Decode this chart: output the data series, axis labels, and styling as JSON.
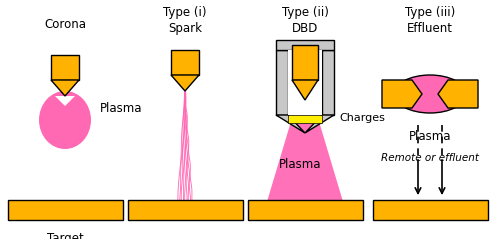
{
  "bg_color": "#ffffff",
  "gold": "#FFB300",
  "gold_edge": "#000000",
  "pink": "#FF69B4",
  "gray": "#C8C8C8",
  "white": "#ffffff",
  "yellow": "#FFEE00",
  "figsize": [
    5.0,
    2.39
  ],
  "dpi": 100,
  "xlim": [
    0,
    500
  ],
  "ylim": [
    0,
    239
  ],
  "corona_x": 65,
  "spark_x": 185,
  "dbd_x": 305,
  "effluent_x": 430
}
